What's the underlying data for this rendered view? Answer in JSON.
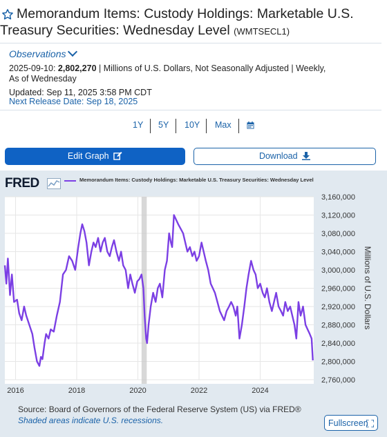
{
  "header": {
    "title": "Memorandum Items: Custody Holdings: Marketable U.S. Treasury Securities: Wednesday Level",
    "series_id": "(WMTSECL1)"
  },
  "observations": {
    "label": "Observations",
    "date": "2025-09-10:",
    "value": "2,802,270",
    "details": "| Millions of U.S. Dollars, Not Seasonally Adjusted | Weekly, As of Wednesday",
    "updated": "Updated: Sep 11, 2025 3:58 PM CDT",
    "next_release": "Next Release Date: Sep 18, 2025"
  },
  "range_buttons": [
    "1Y",
    "5Y",
    "10Y",
    "Max"
  ],
  "actions": {
    "edit_label": "Edit Graph",
    "download_label": "Download"
  },
  "chart_panel": {
    "logo": "FRED",
    "source": "Source: Board of Governors of the Federal Reserve System (US) via FRED®",
    "note": "Shaded areas indicate U.S. recessions.",
    "fullscreen_label": "Fullscreen"
  },
  "colors": {
    "series": "#7b3fe4",
    "accent": "#1a62a8",
    "primary_button": "#0f62c4",
    "panel_bg": "#e1e9f0",
    "recession": "#c8c8c8"
  },
  "chart_data": {
    "type": "line",
    "title": "",
    "legend": "Memorandum Items: Custody Holdings: Marketable U.S. Treasury Securities: Wednesday Level",
    "ylabel": "Millions of U.S. Dollars",
    "xlabel": "",
    "xlim": [
      2015.65,
      2025.75
    ],
    "ylim": [
      2760000,
      3160000
    ],
    "x_ticks": [
      2016,
      2018,
      2020,
      2022,
      2024
    ],
    "y_ticks": [
      2760000,
      2800000,
      2840000,
      2880000,
      2920000,
      2960000,
      3000000,
      3040000,
      3080000,
      3120000,
      3160000
    ],
    "y_tick_labels": [
      "2,760,000",
      "2,800,000",
      "2,840,000",
      "2,880,000",
      "2,920,000",
      "2,960,000",
      "3,000,000",
      "3,040,000",
      "3,080,000",
      "3,120,000",
      "3,160,000"
    ],
    "grid": true,
    "legend_position": "top",
    "recessions": [
      [
        2020.12,
        2020.29
      ]
    ],
    "series": [
      {
        "name": "WMTSECL1",
        "x": [
          2015.65,
          2015.7,
          2015.75,
          2015.82,
          2015.88,
          2015.95,
          2016.05,
          2016.12,
          2016.2,
          2016.28,
          2016.35,
          2016.45,
          2016.55,
          2016.62,
          2016.7,
          2016.78,
          2016.83,
          2016.88,
          2016.95,
          2017.0,
          2017.08,
          2017.15,
          2017.25,
          2017.35,
          2017.45,
          2017.55,
          2017.65,
          2017.75,
          2017.85,
          2017.95,
          2018.05,
          2018.12,
          2018.18,
          2018.25,
          2018.32,
          2018.4,
          2018.48,
          2018.55,
          2018.62,
          2018.7,
          2018.78,
          2018.85,
          2018.92,
          2019.0,
          2019.08,
          2019.15,
          2019.22,
          2019.3,
          2019.38,
          2019.45,
          2019.52,
          2019.6,
          2019.68,
          2019.75,
          2019.82,
          2019.9,
          2019.98,
          2020.05,
          2020.12,
          2020.18,
          2020.22,
          2020.27,
          2020.3,
          2020.35,
          2020.42,
          2020.5,
          2020.58,
          2020.65,
          2020.72,
          2020.8,
          2020.88,
          2020.95,
          2021.02,
          2021.08,
          2021.12,
          2021.18,
          2021.25,
          2021.32,
          2021.4,
          2021.48,
          2021.55,
          2021.62,
          2021.7,
          2021.78,
          2021.85,
          2021.92,
          2022.0,
          2022.08,
          2022.15,
          2022.22,
          2022.3,
          2022.38,
          2022.45,
          2022.52,
          2022.6,
          2022.68,
          2022.75,
          2022.82,
          2022.9,
          2022.98,
          2023.05,
          2023.12,
          2023.2,
          2023.25,
          2023.32,
          2023.4,
          2023.48,
          2023.55,
          2023.62,
          2023.7,
          2023.78,
          2023.85,
          2023.92,
          2024.0,
          2024.08,
          2024.15,
          2024.22,
          2024.3,
          2024.38,
          2024.45,
          2024.52,
          2024.6,
          2024.68,
          2024.75,
          2024.82,
          2024.9,
          2024.98,
          2025.05,
          2025.12,
          2025.18,
          2025.25,
          2025.32,
          2025.4,
          2025.48,
          2025.55,
          2025.62,
          2025.68,
          2025.72
        ],
        "y": [
          3010000,
          2970000,
          3025000,
          2945000,
          2990000,
          2930000,
          2935000,
          2905000,
          2890000,
          2920000,
          2900000,
          2880000,
          2860000,
          2830000,
          2800000,
          2790000,
          2810000,
          2805000,
          2840000,
          2860000,
          2850000,
          2870000,
          2865000,
          2900000,
          2930000,
          2990000,
          3000000,
          3030000,
          3020000,
          3000000,
          3050000,
          3080000,
          3100000,
          3085000,
          3060000,
          3010000,
          3040000,
          3060000,
          3050000,
          3070000,
          3040000,
          3060000,
          3070000,
          3040000,
          3030000,
          3050000,
          3065000,
          3040000,
          3020000,
          3040000,
          3010000,
          3000000,
          2960000,
          2990000,
          2970000,
          2950000,
          2975000,
          2980000,
          2990000,
          2960000,
          2900000,
          2850000,
          2840000,
          2880000,
          2920000,
          2950000,
          2930000,
          2960000,
          2970000,
          2940000,
          3000000,
          3020000,
          3080000,
          3060000,
          3050000,
          3120000,
          3110000,
          3100000,
          3090000,
          3080000,
          3060000,
          3040000,
          3050000,
          3030000,
          3040000,
          3020000,
          3030000,
          3060000,
          3040000,
          3020000,
          3000000,
          2970000,
          2960000,
          2950000,
          2930000,
          2910000,
          2900000,
          2890000,
          2910000,
          2920000,
          2930000,
          2920000,
          2900000,
          2920000,
          2850000,
          2880000,
          2920000,
          2960000,
          2990000,
          3020000,
          3000000,
          2990000,
          2960000,
          2970000,
          2950000,
          2940000,
          2960000,
          2930000,
          2910000,
          2930000,
          2950000,
          2920000,
          2910000,
          2900000,
          2930000,
          2910000,
          2920000,
          2900000,
          2880000,
          2850000,
          2930000,
          2900000,
          2920000,
          2880000,
          2870000,
          2860000,
          2850000,
          2802270
        ]
      }
    ]
  }
}
